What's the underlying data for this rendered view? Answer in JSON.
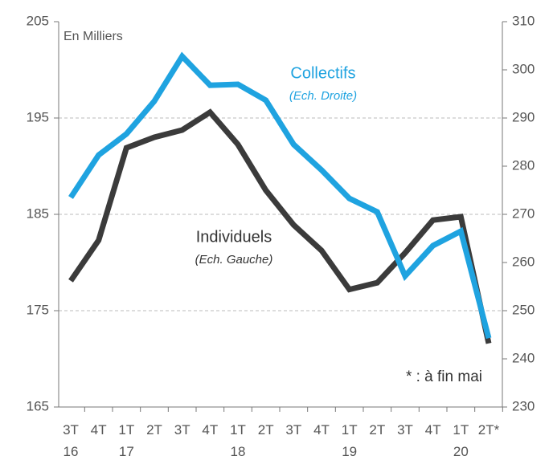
{
  "chart_data": {
    "type": "line",
    "categories": [
      "3T\n16",
      "4T",
      "1T\n17",
      "2T",
      "3T",
      "4T",
      "1T\n18",
      "2T",
      "3T",
      "4T",
      "1T\n19",
      "2T",
      "3T",
      "4T",
      "1T\n20",
      "2T*"
    ],
    "series": [
      {
        "name": "Individuels",
        "subtitle": "(Ech. Gauche)",
        "color": "#3b3b3b",
        "axis": "y",
        "values": [
          178.1,
          182.3,
          191.9,
          193.0,
          193.75,
          195.6,
          192.25,
          187.5,
          183.9,
          181.25,
          177.2,
          177.9,
          181.0,
          184.4,
          184.75,
          171.6
        ]
      },
      {
        "name": "Collectifs",
        "subtitle": "(Ech. Droite)",
        "color": "#1fa3e0",
        "axis": "y2",
        "values": [
          273.5,
          282.3,
          286.7,
          293.5,
          302.8,
          296.8,
          297.0,
          293.7,
          284.5,
          279.2,
          273.3,
          270.5,
          257.2,
          263.5,
          266.5,
          244.3
        ]
      }
    ],
    "ylim": [
      165,
      205
    ],
    "yticks": [
      165,
      175,
      185,
      195,
      205
    ],
    "y2lim": [
      230,
      310
    ],
    "y2ticks": [
      230,
      240,
      250,
      260,
      270,
      280,
      290,
      300,
      310
    ],
    "grid": true,
    "annotations": [
      "En Milliers",
      "* : à fin mai"
    ]
  }
}
